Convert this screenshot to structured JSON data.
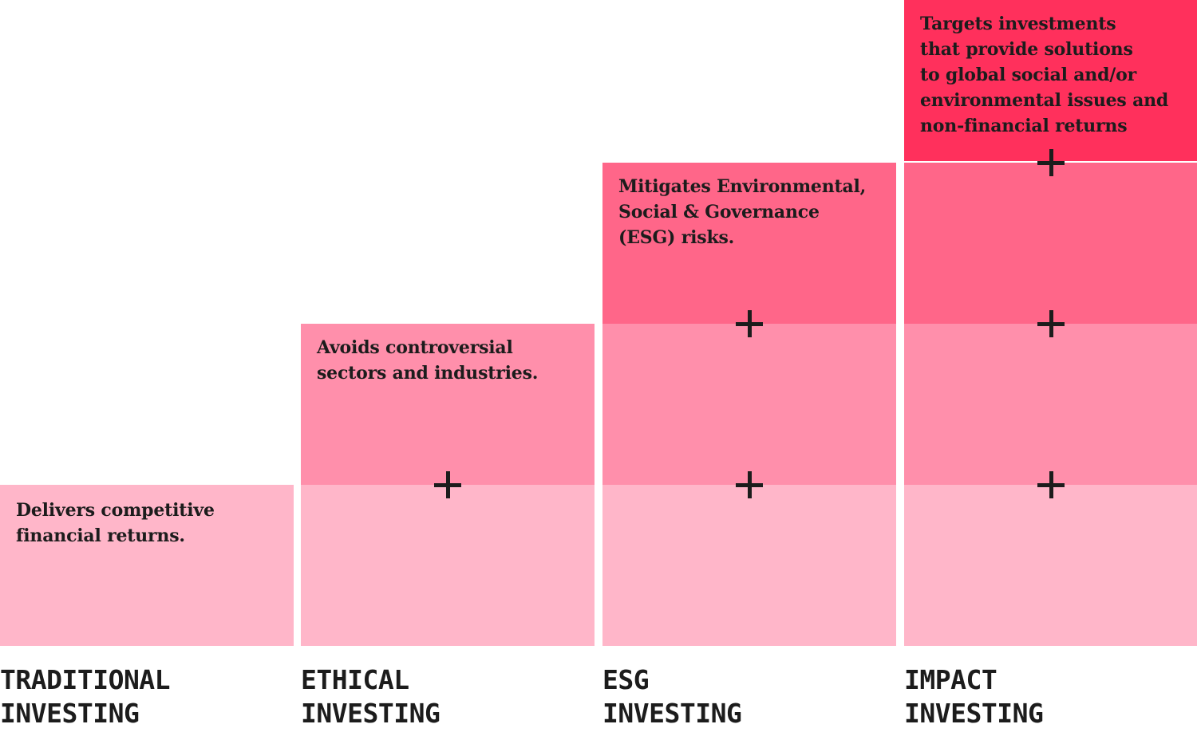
{
  "colors": {
    "tier_1": "#ffb6c9",
    "tier_2": "#ff8fab",
    "tier_3": "#ff6689",
    "tier_4": "#ff305c",
    "text": "#1c1c1c"
  },
  "columns": [
    {
      "label": "TRADITIONAL\nINVESTING",
      "description": "Delivers competitive\nfinancial returns."
    },
    {
      "label": "ETHICAL\nINVESTING",
      "description": "Avoids controversial\nsectors and industries."
    },
    {
      "label": "ESG\nINVESTING",
      "description": "Mitigates Environmental,\nSocial & Governance\n(ESG) risks."
    },
    {
      "label": "IMPACT\nINVESTING",
      "description": "Targets investments\nthat provide solutions\nto global social and/or\nenvironmental issues and\nnon-financial returns"
    }
  ],
  "connector_icon": "plus-icon"
}
